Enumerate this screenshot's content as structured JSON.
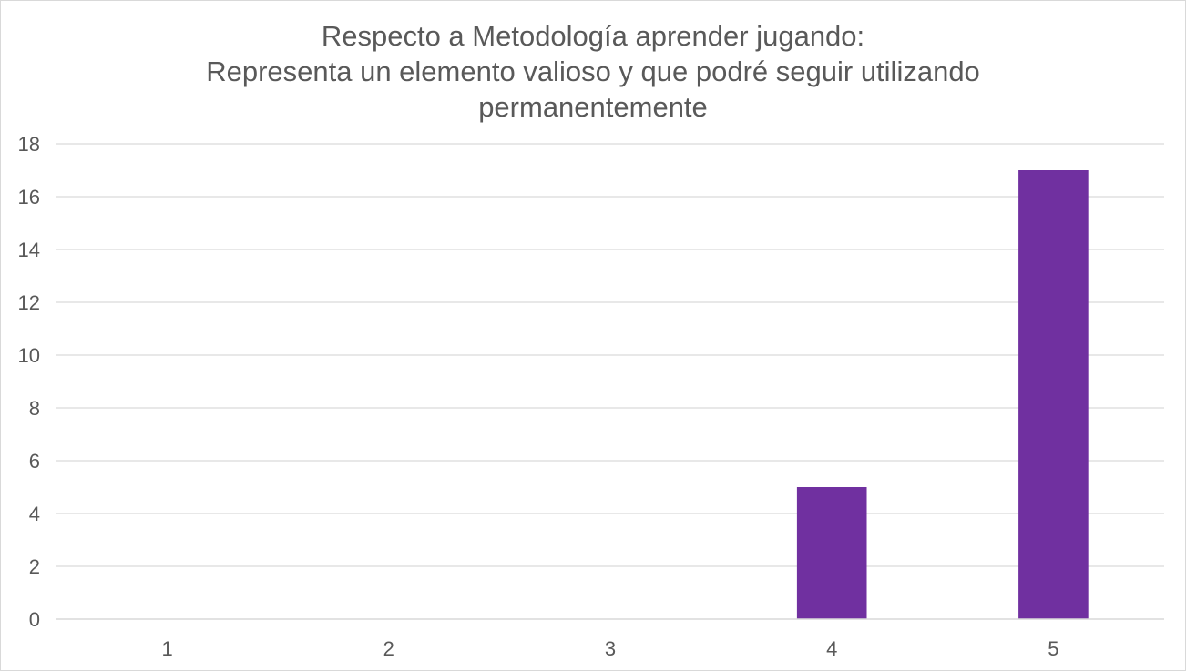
{
  "chart_data": {
    "type": "bar",
    "title_lines": [
      "Respecto a Metodología aprender jugando:",
      "Representa un elemento valioso y que podré seguir utilizando",
      "permanentemente"
    ],
    "categories": [
      "1",
      "2",
      "3",
      "4",
      "5"
    ],
    "values": [
      0,
      0,
      0,
      5,
      17
    ],
    "ylim": [
      0,
      18
    ],
    "yticks": [
      0,
      2,
      4,
      6,
      8,
      10,
      12,
      14,
      16,
      18
    ],
    "xlabel": "",
    "ylabel": "",
    "grid": true,
    "legend": "none",
    "bar_color": "#7030a0",
    "grid_color": "#d9d9d9",
    "text_color": "#595959"
  }
}
